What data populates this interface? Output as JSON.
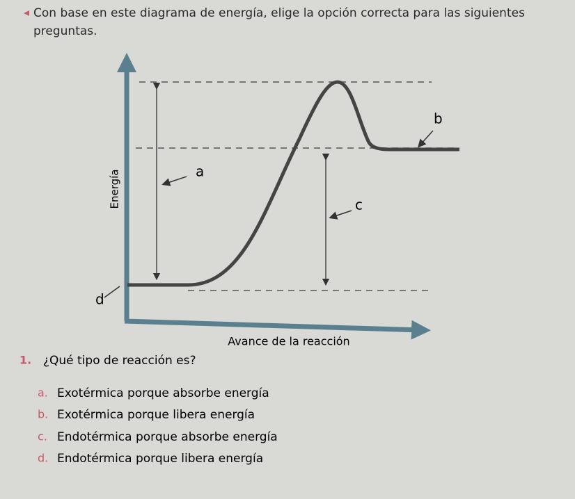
{
  "instruction": "Con base en este diagrama de energía, elige la opción correcta para las siguientes preguntas.",
  "diagram": {
    "y_axis_label": "Energía",
    "x_axis_label": "Avance de la reacción",
    "labels": [
      "a",
      "b",
      "c",
      "d"
    ]
  },
  "question": {
    "number": "1.",
    "text": "¿Qué tipo de reacción es?",
    "options": [
      {
        "letter": "a.",
        "text": "Exotérmica porque absorbe energía"
      },
      {
        "letter": "b.",
        "text": "Exotérmica porque libera energía"
      },
      {
        "letter": "c.",
        "text": "Endotérmica porque absorbe energía"
      },
      {
        "letter": "d.",
        "text": "Endotérmica porque libera energía"
      }
    ]
  }
}
